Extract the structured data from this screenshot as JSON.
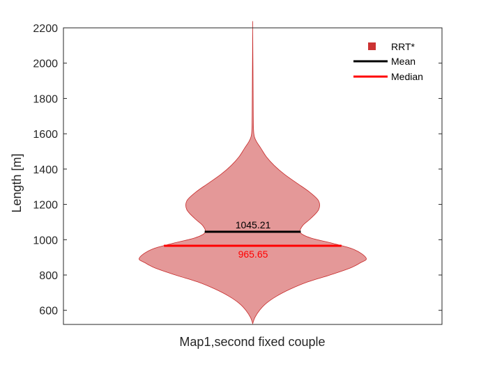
{
  "chart_data": {
    "type": "violin",
    "xlabel": "Map1,second fixed couple",
    "ylabel": "Length [m]",
    "ylim": [
      520,
      2200
    ],
    "yticks": [
      600,
      800,
      1000,
      1200,
      1400,
      1600,
      1800,
      2000,
      2200
    ],
    "grid": false,
    "legend_position": "top-right",
    "series": [
      {
        "name": "RRT*",
        "color": "#e49898",
        "edge_color": "#c62828",
        "density_profile": [
          [
            525,
            0.0
          ],
          [
            560,
            0.02
          ],
          [
            600,
            0.06
          ],
          [
            640,
            0.12
          ],
          [
            680,
            0.21
          ],
          [
            720,
            0.33
          ],
          [
            760,
            0.48
          ],
          [
            800,
            0.68
          ],
          [
            840,
            0.86
          ],
          [
            870,
            0.95
          ],
          [
            890,
            1.0
          ],
          [
            920,
            0.96
          ],
          [
            950,
            0.87
          ],
          [
            980,
            0.7
          ],
          [
            1010,
            0.51
          ],
          [
            1040,
            0.42
          ],
          [
            1080,
            0.44
          ],
          [
            1120,
            0.51
          ],
          [
            1170,
            0.58
          ],
          [
            1220,
            0.58
          ],
          [
            1270,
            0.5
          ],
          [
            1320,
            0.39
          ],
          [
            1370,
            0.28
          ],
          [
            1420,
            0.19
          ],
          [
            1470,
            0.12
          ],
          [
            1520,
            0.07
          ],
          [
            1560,
            0.03
          ],
          [
            1600,
            0.01
          ],
          [
            1700,
            0.005
          ],
          [
            1900,
            0.003
          ],
          [
            2200,
            0.0
          ]
        ]
      }
    ],
    "mean": 1045.21,
    "median": 965.65,
    "mean_label": "1045.21",
    "median_label": "965.65",
    "legend": [
      {
        "label": "RRT*",
        "kind": "square",
        "color": "#cc3333"
      },
      {
        "label": "Mean",
        "kind": "line",
        "color": "#000000"
      },
      {
        "label": "Median",
        "kind": "line",
        "color": "#ff0000"
      }
    ]
  }
}
